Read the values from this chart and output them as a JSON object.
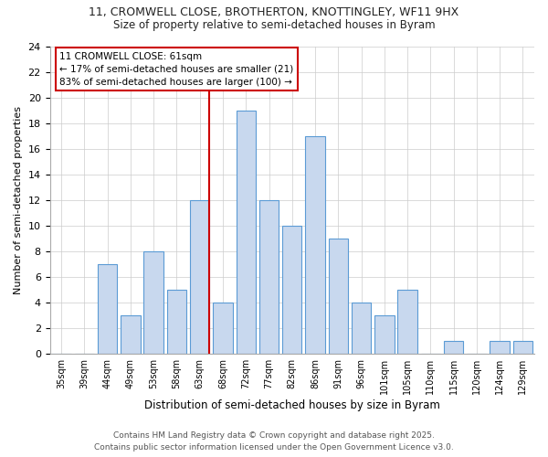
{
  "title": "11, CROMWELL CLOSE, BROTHERTON, KNOTTINGLEY, WF11 9HX",
  "subtitle": "Size of property relative to semi-detached houses in Byram",
  "xlabel": "Distribution of semi-detached houses by size in Byram",
  "ylabel": "Number of semi-detached properties",
  "categories": [
    "35sqm",
    "39sqm",
    "44sqm",
    "49sqm",
    "53sqm",
    "58sqm",
    "63sqm",
    "68sqm",
    "72sqm",
    "77sqm",
    "82sqm",
    "86sqm",
    "91sqm",
    "96sqm",
    "101sqm",
    "105sqm",
    "110sqm",
    "115sqm",
    "120sqm",
    "124sqm",
    "129sqm"
  ],
  "counts": [
    0,
    0,
    7,
    3,
    8,
    5,
    12,
    4,
    19,
    12,
    10,
    17,
    9,
    4,
    3,
    5,
    0,
    1,
    0,
    1,
    1
  ],
  "bar_fill": "#c8d8ee",
  "bar_edge": "#5b9bd5",
  "property_bar_index": 6,
  "annotation_text": "11 CROMWELL CLOSE: 61sqm\n← 17% of semi-detached houses are smaller (21)\n83% of semi-detached houses are larger (100) →",
  "ylim": [
    0,
    24
  ],
  "yticks": [
    0,
    2,
    4,
    6,
    8,
    10,
    12,
    14,
    16,
    18,
    20,
    22,
    24
  ],
  "footer1": "Contains HM Land Registry data © Crown copyright and database right 2025.",
  "footer2": "Contains public sector information licensed under the Open Government Licence v3.0.",
  "bg_color": "#ffffff",
  "grid_color": "#cccccc",
  "line_color": "#cc0000",
  "box_edge_color": "#cc0000",
  "title_fontsize": 9,
  "subtitle_fontsize": 8.5,
  "xlabel_fontsize": 8.5,
  "ylabel_fontsize": 8,
  "tick_fontsize": 7,
  "annotation_fontsize": 7.5,
  "footer_fontsize": 6.5
}
